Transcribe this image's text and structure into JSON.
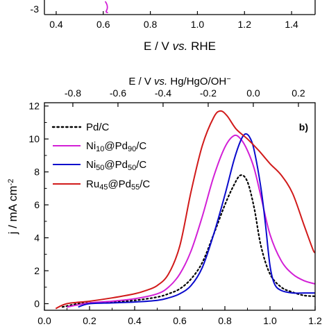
{
  "chart_data": [
    {
      "type": "line",
      "panel": "a",
      "partial": true,
      "xlabel": "E / V vs. RHE",
      "xlabel_parts": [
        "E / V ",
        "vs.",
        " RHE"
      ],
      "xlim": [
        0.35,
        1.5
      ],
      "x_ticks": [
        "0.4",
        "0.6",
        "0.8",
        "1.0",
        "1.2",
        "1.4"
      ],
      "y_ticks_visible": [
        "-3"
      ],
      "visible_fragment": {
        "x": 0.62,
        "color": "#d21fd6"
      }
    },
    {
      "type": "line",
      "panel": "b",
      "panel_label": "b)",
      "xlabel": "E / V vs. RHE",
      "ylabel": "j / mA cm⁻²",
      "ylabel_parts": [
        "j / mA cm",
        "-2"
      ],
      "top_xlabel": "E / V vs. Hg/HgO/OH⁻",
      "top_xlabel_parts": [
        "E / V ",
        "vs.",
        " Hg/HgO/OH",
        "−"
      ],
      "xlim": [
        0.0,
        1.2
      ],
      "ylim": [
        -0.4,
        12.2
      ],
      "x_ticks": [
        "0.0",
        "0.2",
        "0.4",
        "0.6",
        "0.8",
        "1.0",
        "1.2"
      ],
      "y_ticks": [
        "0",
        "2",
        "4",
        "6",
        "8",
        "10",
        "12"
      ],
      "top_ticks": [
        "-0.8",
        "-0.6",
        "-0.4",
        "-0.2",
        "0.0",
        "0.2"
      ],
      "top_tick_values": [
        -0.8,
        -0.6,
        -0.4,
        -0.2,
        0.0,
        0.2
      ],
      "top_offset_V": 0.926,
      "legend_position": "top-left",
      "series": [
        {
          "name": "Pd/C",
          "name_parts": [
            [
              "Pd/C",
              ""
            ]
          ],
          "color": "#000000",
          "dash": "dotted",
          "x": [
            0.08,
            0.15,
            0.2,
            0.3,
            0.4,
            0.5,
            0.55,
            0.6,
            0.65,
            0.7,
            0.75,
            0.8,
            0.84,
            0.87,
            0.9,
            0.93,
            0.96,
            1.0,
            1.05,
            1.1,
            1.15,
            1.2
          ],
          "y": [
            -0.2,
            0.0,
            0.05,
            0.1,
            0.2,
            0.4,
            0.6,
            0.9,
            1.5,
            2.5,
            4.2,
            6.0,
            7.2,
            7.8,
            7.4,
            5.8,
            3.5,
            1.8,
            1.0,
            0.7,
            0.5,
            0.45
          ]
        },
        {
          "name": "Ni10@Pd90/C",
          "name_parts": [
            [
              "Ni",
              ""
            ],
            [
              "10",
              "sub"
            ],
            [
              "@Pd",
              ""
            ],
            [
              "90",
              "sub"
            ],
            [
              "/C",
              ""
            ]
          ],
          "color": "#d21fd6",
          "dash": "solid",
          "x": [
            0.1,
            0.2,
            0.3,
            0.4,
            0.5,
            0.55,
            0.6,
            0.65,
            0.7,
            0.75,
            0.8,
            0.84,
            0.87,
            0.9,
            0.93,
            0.96,
            1.0,
            1.05,
            1.1,
            1.15,
            1.2
          ],
          "y": [
            -0.2,
            0.05,
            0.15,
            0.3,
            0.6,
            1.0,
            1.8,
            3.2,
            5.3,
            7.7,
            9.5,
            10.2,
            10.0,
            9.3,
            8.2,
            6.5,
            4.2,
            2.6,
            1.8,
            1.4,
            1.2
          ]
        },
        {
          "name": "Ni50@Pd50/C",
          "name_parts": [
            [
              "Ni",
              ""
            ],
            [
              "50",
              "sub"
            ],
            [
              "@Pd",
              ""
            ],
            [
              "50",
              "sub"
            ],
            [
              "/C",
              ""
            ]
          ],
          "color": "#0a0acc",
          "dash": "solid",
          "x": [
            0.15,
            0.2,
            0.3,
            0.4,
            0.5,
            0.55,
            0.6,
            0.65,
            0.7,
            0.75,
            0.8,
            0.84,
            0.87,
            0.89,
            0.91,
            0.93,
            0.96,
            0.98,
            1.0,
            1.02,
            1.05,
            1.1,
            1.15,
            1.2
          ],
          "y": [
            -0.2,
            0.0,
            0.05,
            0.1,
            0.2,
            0.35,
            0.6,
            1.1,
            2.2,
            4.2,
            6.6,
            8.7,
            9.9,
            10.3,
            10.1,
            9.3,
            7.0,
            4.8,
            2.3,
            1.2,
            0.8,
            0.65,
            0.65,
            0.65
          ]
        },
        {
          "name": "Ru45@Pd55/C",
          "name_parts": [
            [
              "Ru",
              ""
            ],
            [
              "45",
              "sub"
            ],
            [
              "@Pd",
              ""
            ],
            [
              "55",
              "sub"
            ],
            [
              "/C",
              ""
            ]
          ],
          "color": "#d11a1a",
          "dash": "solid",
          "x": [
            0.05,
            0.1,
            0.2,
            0.3,
            0.4,
            0.45,
            0.5,
            0.55,
            0.6,
            0.65,
            0.7,
            0.75,
            0.78,
            0.81,
            0.85,
            0.9,
            0.95,
            1.0,
            1.05,
            1.1,
            1.15,
            1.19,
            1.2
          ],
          "y": [
            -0.3,
            0.0,
            0.15,
            0.35,
            0.6,
            0.8,
            1.1,
            1.8,
            3.5,
            6.8,
            9.6,
            11.3,
            11.7,
            11.4,
            10.6,
            10.0,
            9.3,
            8.5,
            7.8,
            6.7,
            4.8,
            3.3,
            3.1
          ]
        }
      ]
    }
  ]
}
